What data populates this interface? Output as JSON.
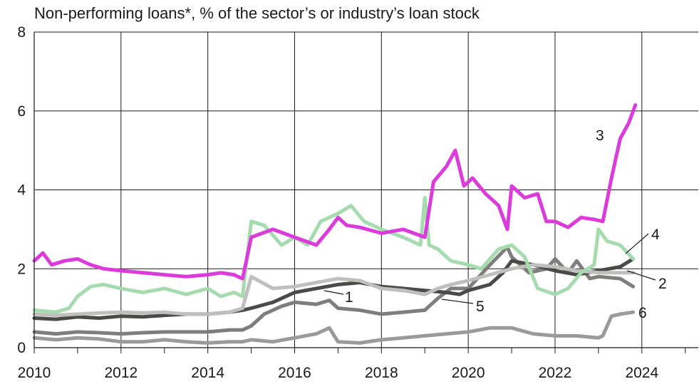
{
  "chart_data": {
    "type": "line",
    "title": "Non-performing loans*, % of the sector’s or industry’s loan stock",
    "xlim": [
      2010,
      2025.3
    ],
    "ylim": [
      0,
      8
    ],
    "x_ticks": [
      2010,
      2012,
      2014,
      2016,
      2018,
      2020,
      2022,
      2024
    ],
    "x_tick_labels": [
      "2010",
      "2012",
      "2014",
      "2016",
      "2018",
      "2020",
      "2022",
      "2024"
    ],
    "y_ticks": [
      0,
      2,
      4,
      6,
      8
    ],
    "y_tick_labels": [
      "0",
      "2",
      "4",
      "6",
      "8"
    ],
    "grid": true,
    "series": [
      {
        "name": "1",
        "color": "#4a4a48",
        "x": [
          2010,
          2010.5,
          2011,
          2011.5,
          2012,
          2012.5,
          2013,
          2013.5,
          2014,
          2014.5,
          2014.8,
          2015,
          2015.5,
          2016,
          2016.5,
          2017,
          2017.5,
          2018,
          2018.5,
          2019,
          2019.5,
          2019.8,
          2020,
          2020.5,
          2020.8,
          2021,
          2021.5,
          2022,
          2022.5,
          2023,
          2023.5,
          2023.8
        ],
        "values": [
          0.75,
          0.72,
          0.78,
          0.75,
          0.8,
          0.78,
          0.82,
          0.85,
          0.85,
          0.9,
          0.95,
          1.0,
          1.15,
          1.4,
          1.5,
          1.6,
          1.65,
          1.55,
          1.5,
          1.45,
          1.4,
          1.35,
          1.45,
          1.6,
          1.9,
          2.2,
          2.1,
          1.95,
          1.85,
          1.95,
          2.05,
          2.25
        ]
      },
      {
        "name": "2",
        "color": "#7e7e7c",
        "x": [
          2010,
          2010.5,
          2011,
          2011.5,
          2012,
          2012.5,
          2013,
          2013.5,
          2014,
          2014.5,
          2014.8,
          2015,
          2015.3,
          2015.7,
          2016,
          2016.5,
          2016.8,
          2017,
          2017.5,
          2018,
          2018.5,
          2019,
          2019.3,
          2019.6,
          2020,
          2020.5,
          2020.9,
          2021,
          2021.4,
          2021.8,
          2022,
          2022.3,
          2022.5,
          2022.8,
          2023,
          2023.5,
          2023.8
        ],
        "values": [
          0.4,
          0.35,
          0.4,
          0.38,
          0.35,
          0.38,
          0.4,
          0.4,
          0.4,
          0.45,
          0.45,
          0.55,
          0.85,
          1.05,
          1.15,
          1.1,
          1.2,
          1.0,
          0.95,
          0.85,
          0.9,
          0.95,
          1.25,
          1.5,
          1.5,
          2.1,
          2.55,
          2.3,
          1.9,
          2.0,
          2.25,
          1.9,
          2.2,
          1.75,
          1.8,
          1.75,
          1.55
        ]
      },
      {
        "name": "3",
        "color": "#db3bdb",
        "x": [
          2010,
          2010.2,
          2010.4,
          2010.7,
          2011,
          2011.3,
          2011.6,
          2012,
          2012.5,
          2013,
          2013.5,
          2014,
          2014.3,
          2014.6,
          2014.8,
          2015,
          2015.5,
          2016,
          2016.5,
          2016.8,
          2017,
          2017.2,
          2017.5,
          2018,
          2018.5,
          2019,
          2019.2,
          2019.5,
          2019.7,
          2019.9,
          2020.1,
          2020.4,
          2020.7,
          2020.9,
          2021,
          2021.3,
          2021.6,
          2021.8,
          2022,
          2022.3,
          2022.6,
          2022.9,
          2023.1,
          2023.3,
          2023.5,
          2023.7,
          2023.85
        ],
        "values": [
          2.2,
          2.4,
          2.1,
          2.2,
          2.25,
          2.1,
          2.0,
          1.95,
          1.9,
          1.85,
          1.8,
          1.85,
          1.9,
          1.85,
          1.75,
          2.8,
          3.0,
          2.8,
          2.6,
          3.0,
          3.3,
          3.1,
          3.05,
          2.9,
          3.0,
          2.8,
          4.2,
          4.6,
          5.0,
          4.1,
          4.3,
          3.9,
          3.6,
          3.0,
          4.1,
          3.8,
          3.9,
          3.2,
          3.2,
          3.05,
          3.3,
          3.25,
          3.2,
          4.3,
          5.3,
          5.7,
          6.15
        ]
      },
      {
        "name": "4",
        "color": "#a6dbb0",
        "x": [
          2010,
          2010.5,
          2010.8,
          2011,
          2011.3,
          2011.6,
          2012,
          2012.5,
          2013,
          2013.5,
          2014,
          2014.3,
          2014.6,
          2014.8,
          2015,
          2015.3,
          2015.7,
          2016,
          2016.3,
          2016.6,
          2017,
          2017.3,
          2017.6,
          2018,
          2018.5,
          2018.9,
          2019,
          2019.1,
          2019.3,
          2019.6,
          2020,
          2020.3,
          2020.7,
          2021,
          2021.3,
          2021.6,
          2022,
          2022.3,
          2022.6,
          2022.9,
          2023,
          2023.2,
          2023.5,
          2023.8
        ],
        "values": [
          0.95,
          0.9,
          1.0,
          1.3,
          1.55,
          1.6,
          1.5,
          1.4,
          1.5,
          1.35,
          1.5,
          1.3,
          1.4,
          1.3,
          3.2,
          3.1,
          2.6,
          2.8,
          2.6,
          3.2,
          3.4,
          3.6,
          3.2,
          3.0,
          2.8,
          2.6,
          3.8,
          2.6,
          2.5,
          2.2,
          2.1,
          2.0,
          2.5,
          2.6,
          2.3,
          1.5,
          1.35,
          1.5,
          1.9,
          2.1,
          3.0,
          2.7,
          2.6,
          2.25
        ]
      },
      {
        "name": "5",
        "color": "#bfbfbd",
        "x": [
          2010,
          2010.5,
          2011,
          2011.5,
          2012,
          2012.5,
          2013,
          2013.5,
          2014,
          2014.5,
          2014.8,
          2015,
          2015.5,
          2016,
          2016.5,
          2017,
          2017.5,
          2018,
          2018.5,
          2019,
          2019.3,
          2019.6,
          2020,
          2020.5,
          2021,
          2021.5,
          2022,
          2022.5,
          2023,
          2023.5,
          2023.8
        ],
        "values": [
          0.85,
          0.82,
          0.85,
          0.88,
          0.9,
          0.88,
          0.9,
          0.85,
          0.85,
          0.9,
          1.0,
          1.8,
          1.5,
          1.55,
          1.65,
          1.75,
          1.7,
          1.5,
          1.45,
          1.35,
          1.5,
          1.6,
          1.7,
          1.85,
          2.0,
          2.1,
          2.05,
          1.95,
          1.9,
          1.9,
          1.9
        ]
      },
      {
        "name": "6",
        "color": "#9a9a98",
        "x": [
          2010,
          2010.5,
          2011,
          2011.5,
          2012,
          2012.5,
          2013,
          2013.5,
          2014,
          2014.5,
          2014.8,
          2015,
          2015.5,
          2016,
          2016.5,
          2016.8,
          2017,
          2017.5,
          2018,
          2018.5,
          2019,
          2019.5,
          2020,
          2020.5,
          2021,
          2021.5,
          2022,
          2022.5,
          2023,
          2023.1,
          2023.3,
          2023.5,
          2023.8
        ],
        "values": [
          0.25,
          0.2,
          0.25,
          0.22,
          0.15,
          0.15,
          0.2,
          0.15,
          0.12,
          0.15,
          0.15,
          0.2,
          0.15,
          0.25,
          0.35,
          0.5,
          0.15,
          0.12,
          0.2,
          0.25,
          0.3,
          0.35,
          0.4,
          0.5,
          0.5,
          0.35,
          0.3,
          0.3,
          0.25,
          0.3,
          0.8,
          0.85,
          0.9
        ]
      }
    ]
  }
}
